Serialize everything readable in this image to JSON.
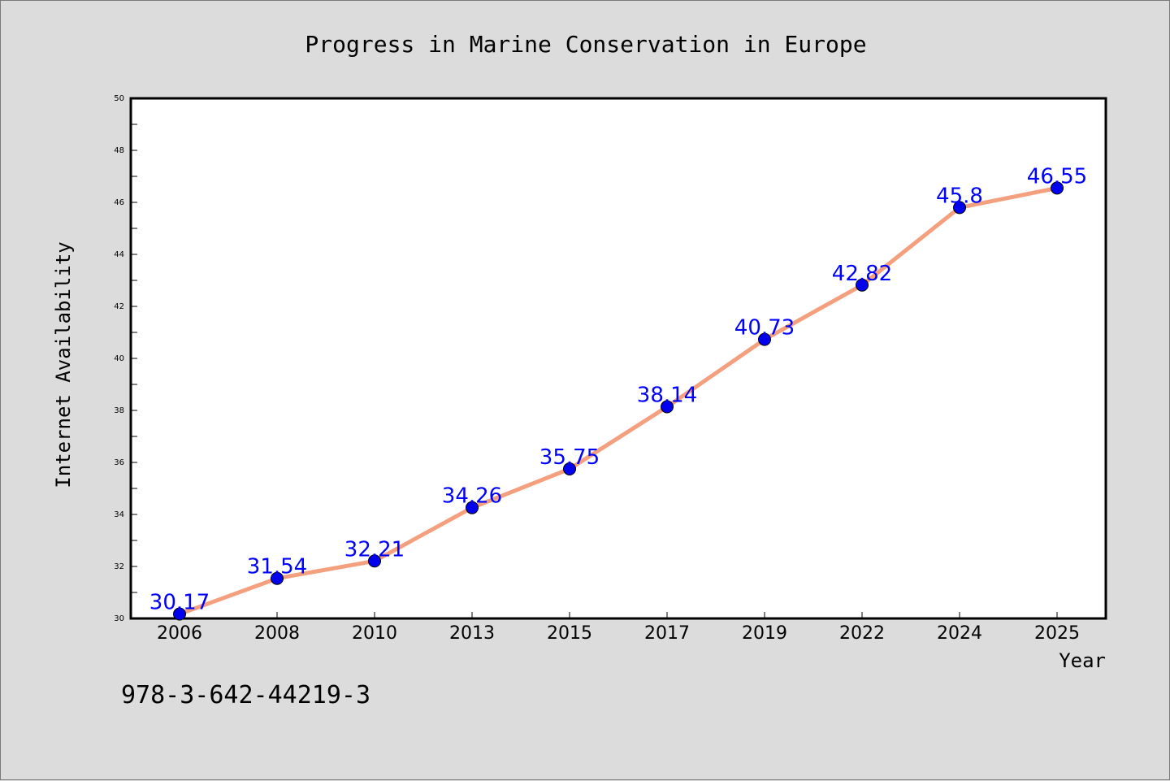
{
  "chart_data": {
    "type": "line",
    "title": "Progress in Marine Conservation in Europe",
    "xlabel": "Year",
    "ylabel": "Internet Availability",
    "categories": [
      "2006",
      "2008",
      "2010",
      "2013",
      "2015",
      "2017",
      "2019",
      "2022",
      "2024",
      "2025"
    ],
    "series": [
      {
        "values": [
          30.17,
          31.54,
          32.21,
          34.26,
          35.75,
          38.14,
          40.73,
          42.82,
          45.8,
          46.55
        ],
        "data_labels": [
          "30.17",
          "31.54",
          "32.21",
          "34.26",
          "35.75",
          "38.14",
          "40.73",
          "42.82",
          "45.8",
          "46.55"
        ],
        "line_color": "#f4a07e",
        "marker_color": "#0000ee",
        "label_color": "#0000ff"
      }
    ],
    "ylim": [
      30,
      50
    ],
    "yticks": [
      "30",
      "32",
      "34",
      "36",
      "38",
      "40",
      "42",
      "44",
      "46",
      "48",
      "50"
    ],
    "grid": false,
    "legend": "none"
  },
  "footer_text": "978-3-642-44219-3",
  "colors": {
    "background": "#dcdcdc",
    "plot_background": "#ffffff"
  }
}
